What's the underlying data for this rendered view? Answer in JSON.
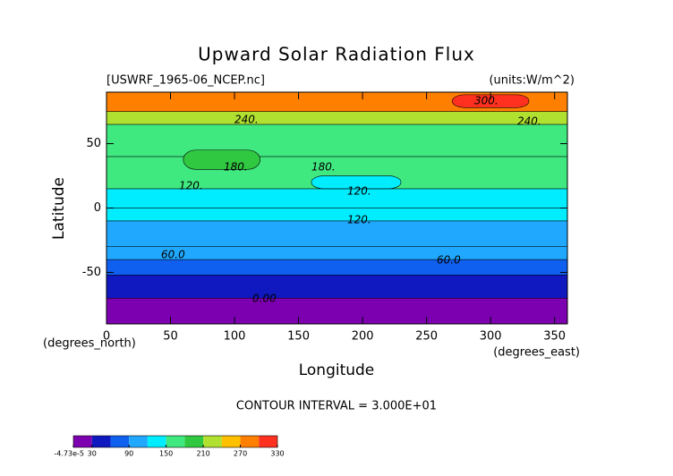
{
  "chart_data": {
    "type": "contour",
    "title": "Upward Solar Radiation Flux",
    "subtitle_left": "[USWRF_1965-06_NCEP.nc]",
    "subtitle_right": "(units:W/m^2)",
    "xlabel": "Longitude",
    "ylabel": "Latitude",
    "xunit": "(degrees_east)",
    "yunit": "(degrees_north)",
    "note": "CONTOUR INTERVAL = 3.000E+01",
    "xlim": [
      0,
      360
    ],
    "xticks": [
      0,
      50,
      100,
      150,
      200,
      250,
      300,
      350
    ],
    "ylim": [
      -90,
      90
    ],
    "yticks": [
      -50,
      0,
      50
    ],
    "levels": [
      0,
      30,
      60,
      90,
      120,
      150,
      180,
      210,
      240,
      270,
      300,
      330
    ],
    "colors": [
      "#7d00b0",
      "#1018c0",
      "#1060f0",
      "#20a8ff",
      "#00ecff",
      "#40e880",
      "#30c840",
      "#b0e030",
      "#ffc000",
      "#ff8000",
      "#ff3020"
    ],
    "band_edges": [
      -90,
      -70,
      -52,
      -40,
      -30,
      -10,
      0,
      15,
      40,
      65,
      75,
      90
    ],
    "band_values": [
      10,
      45,
      75,
      95,
      105,
      125,
      140,
      165,
      175,
      230,
      275
    ],
    "patches": [
      {
        "lon": [
          270,
          330
        ],
        "lat": [
          78,
          88
        ],
        "value": 310
      },
      {
        "lon": [
          160,
          230
        ],
        "lat": [
          15,
          25
        ],
        "value": 130
      },
      {
        "lon": [
          60,
          120
        ],
        "lat": [
          30,
          45
        ],
        "value": 195
      }
    ],
    "contour_labels": [
      "300.",
      "240.",
      "240.",
      "180.",
      "180.",
      "120.",
      "120.",
      "120.",
      "60.0",
      "60.0",
      "0.00"
    ],
    "colorbar_ticks": [
      {
        "value": -4.73e-05,
        "label": "-4.73e-5"
      },
      30,
      90,
      150,
      210,
      270,
      330
    ]
  }
}
